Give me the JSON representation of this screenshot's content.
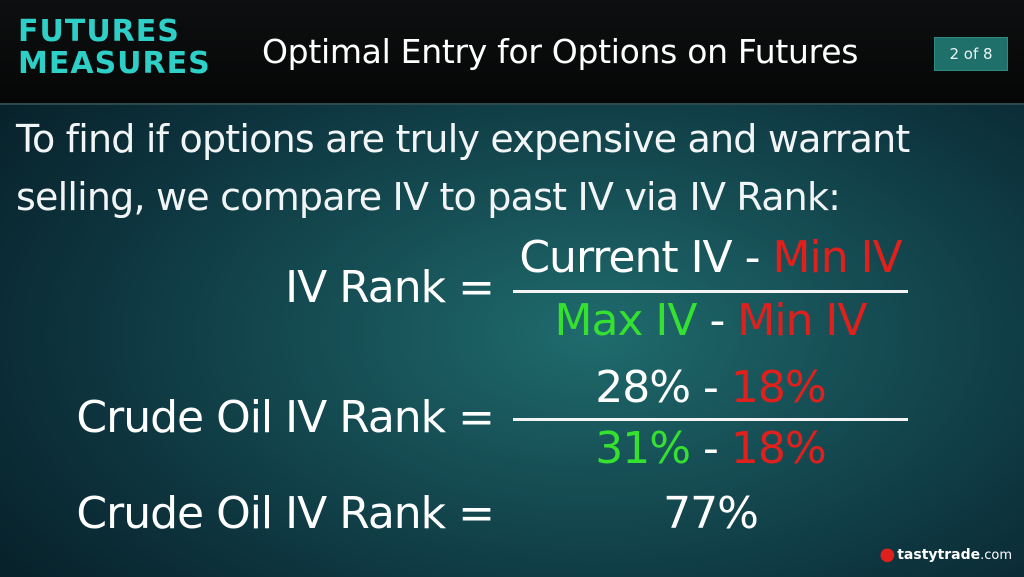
{
  "header": {
    "brand_line1": "FUTURES",
    "brand_line2": "MEASURES",
    "title": "Optimal Entry for Options on Futures",
    "page_indicator": "2 of 8"
  },
  "intro": {
    "line1": "To find if options are truly expensive and warrant",
    "line2": "selling, we compare IV to past IV via IV Rank:"
  },
  "formula": {
    "lhs": "IV Rank =",
    "num_a": "Current IV",
    "num_op": " - ",
    "num_b": "Min IV",
    "den_a": "Max IV",
    "den_op": " - ",
    "den_b": "Min IV"
  },
  "crude": {
    "lhs": "Crude Oil IV Rank =",
    "num_a": "28%",
    "num_op": " - ",
    "num_b": "18%",
    "den_a": "31%",
    "den_op": " - ",
    "den_b": "18%"
  },
  "result": {
    "lhs": "Crude Oil IV Rank =",
    "value": "77%"
  },
  "logo": {
    "name": "tastytrade",
    "suffix": ".com"
  },
  "colors": {
    "brand": "#2ecfc7",
    "min_value": "#e0201c",
    "max_value": "#35e030",
    "badge": "#1f6f6b"
  }
}
